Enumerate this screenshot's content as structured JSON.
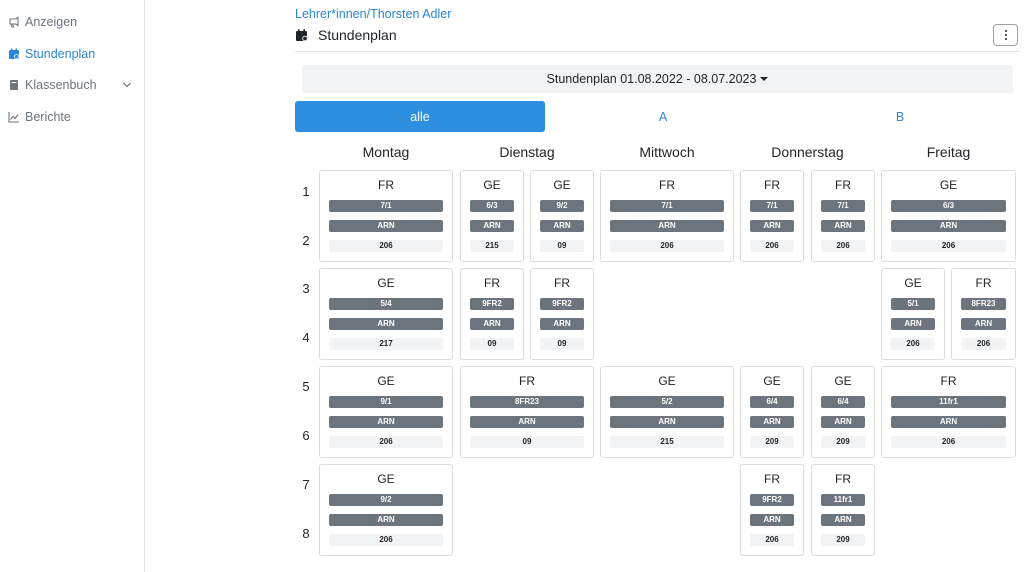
{
  "sidebar": {
    "items": [
      {
        "label": "Anzeigen",
        "icon": "announcement-icon"
      },
      {
        "label": "Stundenplan",
        "icon": "calendar-icon"
      },
      {
        "label": "Klassenbuch",
        "icon": "book-icon"
      },
      {
        "label": "Berichte",
        "icon": "chart-line-icon"
      }
    ]
  },
  "breadcrumb": {
    "parent": "Lehrer*innen",
    "separator": "/",
    "current": "Thorsten Adler"
  },
  "page": {
    "title": "Stundenplan"
  },
  "plan_selector": {
    "label": "Stundenplan 01.08.2022 - 08.07.2023"
  },
  "tabs": [
    {
      "label": "alle",
      "active": true
    },
    {
      "label": "A",
      "active": false
    },
    {
      "label": "B",
      "active": false
    }
  ],
  "days": [
    "Montag",
    "Dienstag",
    "Mittwoch",
    "Donnerstag",
    "Freitag"
  ],
  "periods": [
    "1",
    "2",
    "3",
    "4",
    "5",
    "6",
    "7",
    "8"
  ],
  "lessons": [
    {
      "subject": "FR",
      "class": "7/1",
      "teacher": "ARN",
      "room": "206"
    },
    {
      "subject": "GE",
      "class": "6/3",
      "teacher": "ARN",
      "room": "215"
    },
    {
      "subject": "GE",
      "class": "9/2",
      "teacher": "ARN",
      "room": "09"
    },
    {
      "subject": "FR",
      "class": "7/1",
      "teacher": "ARN",
      "room": "206"
    },
    {
      "subject": "FR",
      "class": "7/1",
      "teacher": "ARN",
      "room": "206"
    },
    {
      "subject": "FR",
      "class": "7/1",
      "teacher": "ARN",
      "room": "206"
    },
    {
      "subject": "GE",
      "class": "6/3",
      "teacher": "ARN",
      "room": "206"
    },
    {
      "subject": "GE",
      "class": "5/4",
      "teacher": "ARN",
      "room": "217"
    },
    {
      "subject": "FR",
      "class": "9FR2",
      "teacher": "ARN",
      "room": "09"
    },
    {
      "subject": "FR",
      "class": "9FR2",
      "teacher": "ARN",
      "room": "09"
    },
    {
      "subject": "GE",
      "class": "5/1",
      "teacher": "ARN",
      "room": "206"
    },
    {
      "subject": "FR",
      "class": "8FR23",
      "teacher": "ARN",
      "room": "206"
    },
    {
      "subject": "GE",
      "class": "9/1",
      "teacher": "ARN",
      "room": "206"
    },
    {
      "subject": "FR",
      "class": "8FR23",
      "teacher": "ARN",
      "room": "09"
    },
    {
      "subject": "GE",
      "class": "5/2",
      "teacher": "ARN",
      "room": "215"
    },
    {
      "subject": "GE",
      "class": "6/4",
      "teacher": "ARN",
      "room": "209"
    },
    {
      "subject": "GE",
      "class": "6/4",
      "teacher": "ARN",
      "room": "209"
    },
    {
      "subject": "FR",
      "class": "11fr1",
      "teacher": "ARN",
      "room": "206"
    },
    {
      "subject": "GE",
      "class": "9/2",
      "teacher": "ARN",
      "room": "206"
    },
    {
      "subject": "FR",
      "class": "9FR2",
      "teacher": "ARN",
      "room": "206"
    },
    {
      "subject": "FR",
      "class": "11fr1",
      "teacher": "ARN",
      "room": "209"
    }
  ],
  "colors": {
    "accent": "#2e8ee0",
    "link": "#2b86d6",
    "pill": "#6c757d",
    "room_bg": "#f1f3f5"
  }
}
